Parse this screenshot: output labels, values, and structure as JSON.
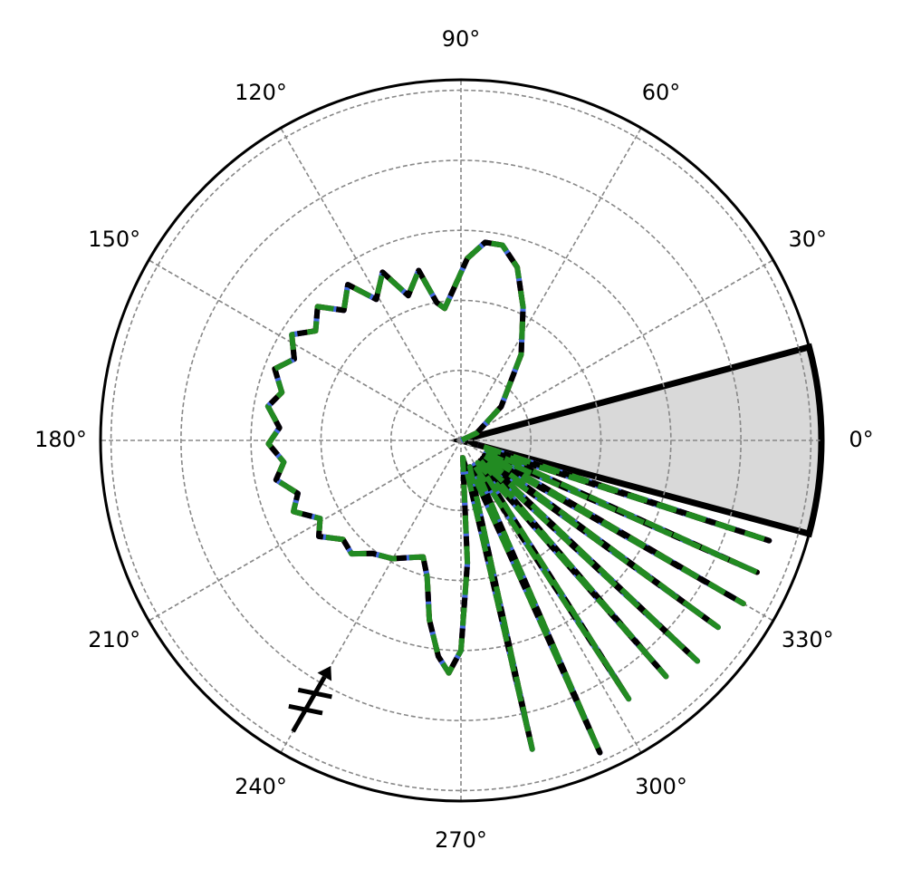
{
  "chart_data": {
    "type": "polar-line",
    "thetaticks": [
      {
        "value": 0,
        "label": "0°"
      },
      {
        "value": 30,
        "label": "30°"
      },
      {
        "value": 60,
        "label": "60°"
      },
      {
        "value": 90,
        "label": "90°"
      },
      {
        "value": 120,
        "label": "120°"
      },
      {
        "value": 150,
        "label": "150°"
      },
      {
        "value": 180,
        "label": "180°"
      },
      {
        "value": 210,
        "label": "210°"
      },
      {
        "value": 240,
        "label": "240°"
      },
      {
        "value": 270,
        "label": "270°"
      },
      {
        "value": 300,
        "label": "300°"
      },
      {
        "value": 330,
        "label": "330°"
      }
    ],
    "rlim": [
      0,
      1.03
    ],
    "rticks": [
      0.2,
      0.4,
      0.6,
      0.8,
      1.0
    ],
    "grid": true,
    "span": {
      "theta": [
        -15,
        15
      ],
      "color": "#d9d9d9"
    },
    "arrow": {
      "theta": 240,
      "r": [
        0.96,
        0.78
      ],
      "color": "#000000"
    },
    "theta": [
      15,
      25,
      40,
      55,
      65,
      72,
      78,
      83,
      88,
      93,
      97,
      100,
      104,
      110,
      115,
      121,
      126,
      132,
      137,
      143,
      148,
      154,
      159,
      165,
      170,
      176,
      181,
      187,
      192,
      198,
      203,
      209,
      214,
      220,
      226,
      232,
      240,
      248,
      252,
      256,
      260,
      264,
      267,
      270,
      273,
      276,
      280.5,
      283,
      288.5,
      294,
      298.5,
      303,
      307,
      311,
      314,
      317,
      320.5,
      324,
      327,
      330,
      333,
      336,
      339,
      342,
      345
    ],
    "series": [
      {
        "color": "#dc143c",
        "linestyle": "solid",
        "values": [
          0,
          0.05,
          0.15,
          0.3,
          0.42,
          0.52,
          0.57,
          0.57,
          0.52,
          0.43,
          0.38,
          0.4,
          0.5,
          0.44,
          0.53,
          0.47,
          0.55,
          0.5,
          0.56,
          0.52,
          0.57,
          0.53,
          0.57,
          0.53,
          0.56,
          0.52,
          0.55,
          0.51,
          0.54,
          0.49,
          0.52,
          0.46,
          0.49,
          0.44,
          0.45,
          0.41,
          0.39,
          0.36,
          0.35,
          0.4,
          0.52,
          0.62,
          0.665,
          0.6,
          0.35,
          0.05,
          0.08,
          0.905,
          0.08,
          0.976,
          0.08,
          0.88,
          0.08,
          0.893,
          0.08,
          0.924,
          0.08,
          0.908,
          0.08,
          0.932,
          0.08,
          0.926,
          0.08,
          0.926,
          0.05
        ]
      },
      {
        "color": "#4169e1",
        "linestyle": "dashed",
        "values": [
          0,
          0.05,
          0.15,
          0.3,
          0.42,
          0.52,
          0.57,
          0.57,
          0.52,
          0.43,
          0.38,
          0.4,
          0.5,
          0.44,
          0.53,
          0.47,
          0.55,
          0.5,
          0.56,
          0.52,
          0.57,
          0.53,
          0.57,
          0.53,
          0.56,
          0.52,
          0.55,
          0.51,
          0.54,
          0.49,
          0.52,
          0.46,
          0.49,
          0.44,
          0.45,
          0.41,
          0.39,
          0.36,
          0.35,
          0.4,
          0.52,
          0.62,
          0.665,
          0.6,
          0.35,
          0.05,
          0.08,
          0.905,
          0.08,
          0.976,
          0.08,
          0.88,
          0.08,
          0.893,
          0.08,
          0.924,
          0.08,
          0.908,
          0.08,
          0.932,
          0.08,
          0.926,
          0.08,
          0.926,
          0.05
        ]
      },
      {
        "color": "#000000",
        "linestyle": "dashed",
        "values": [
          0,
          0.05,
          0.15,
          0.3,
          0.42,
          0.52,
          0.57,
          0.57,
          0.52,
          0.43,
          0.38,
          0.4,
          0.5,
          0.44,
          0.53,
          0.47,
          0.55,
          0.5,
          0.56,
          0.52,
          0.57,
          0.53,
          0.57,
          0.53,
          0.56,
          0.52,
          0.55,
          0.51,
          0.54,
          0.49,
          0.52,
          0.46,
          0.49,
          0.44,
          0.45,
          0.41,
          0.39,
          0.36,
          0.35,
          0.4,
          0.52,
          0.62,
          0.665,
          0.6,
          0.35,
          0.05,
          0.08,
          0.905,
          0.08,
          0.976,
          0.08,
          0.88,
          0.08,
          0.893,
          0.08,
          0.924,
          0.08,
          0.908,
          0.08,
          0.932,
          0.08,
          0.926,
          0.08,
          0.926,
          0.05
        ]
      },
      {
        "color": "#228b22",
        "linestyle": "dashed",
        "values": [
          0,
          0.05,
          0.15,
          0.3,
          0.42,
          0.52,
          0.57,
          0.57,
          0.52,
          0.43,
          0.38,
          0.4,
          0.5,
          0.44,
          0.53,
          0.47,
          0.55,
          0.5,
          0.56,
          0.52,
          0.57,
          0.53,
          0.57,
          0.53,
          0.56,
          0.52,
          0.55,
          0.51,
          0.54,
          0.49,
          0.52,
          0.46,
          0.49,
          0.44,
          0.45,
          0.41,
          0.39,
          0.36,
          0.35,
          0.4,
          0.52,
          0.62,
          0.665,
          0.6,
          0.35,
          0.05,
          0.08,
          0.905,
          0.08,
          0.976,
          0.08,
          0.88,
          0.08,
          0.893,
          0.08,
          0.924,
          0.08,
          0.908,
          0.08,
          0.932,
          0.08,
          0.926,
          0.08,
          0.926,
          0.05
        ]
      }
    ]
  }
}
